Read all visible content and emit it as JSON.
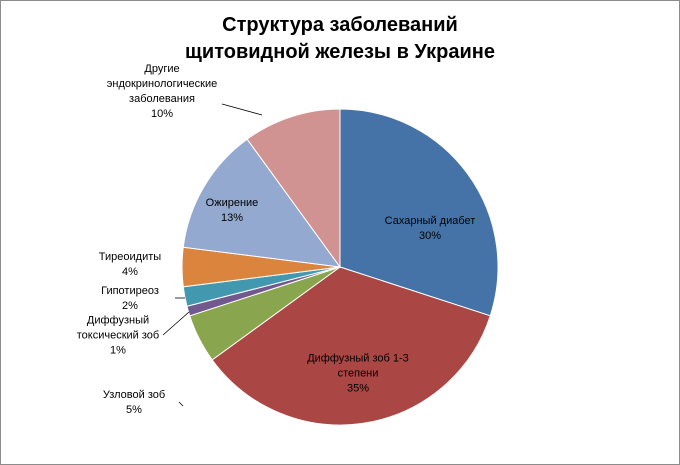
{
  "chart_data": {
    "type": "pie",
    "title": [
      "Структура заболеваний",
      "щитовидной железы в Украине"
    ],
    "slices": [
      {
        "label": [
          "Сахарный диабет"
        ],
        "pct_label": "30%",
        "value": 30,
        "color": "#4573A7"
      },
      {
        "label": [
          "Диффузный зоб 1-3",
          "степени"
        ],
        "pct_label": "35%",
        "value": 35,
        "color": "#AA4643"
      },
      {
        "label": [
          "Узловой зоб"
        ],
        "pct_label": "5%",
        "value": 5,
        "color": "#89A54E"
      },
      {
        "label": [
          "Диффузный",
          "токсический зоб"
        ],
        "pct_label": "1%",
        "value": 1,
        "color": "#71588F"
      },
      {
        "label": [
          "Гипотиреоз"
        ],
        "pct_label": "2%",
        "value": 2,
        "color": "#4198AF"
      },
      {
        "label": [
          "Тиреоидиты"
        ],
        "pct_label": "4%",
        "value": 4,
        "color": "#DB843D"
      },
      {
        "label": [
          "Ожирение"
        ],
        "pct_label": "13%",
        "value": 13,
        "color": "#93A9CF"
      },
      {
        "label": [
          "Другие",
          "эндокринологические",
          "заболевания"
        ],
        "pct_label": "10%",
        "value": 10,
        "color": "#D19392"
      }
    ]
  }
}
